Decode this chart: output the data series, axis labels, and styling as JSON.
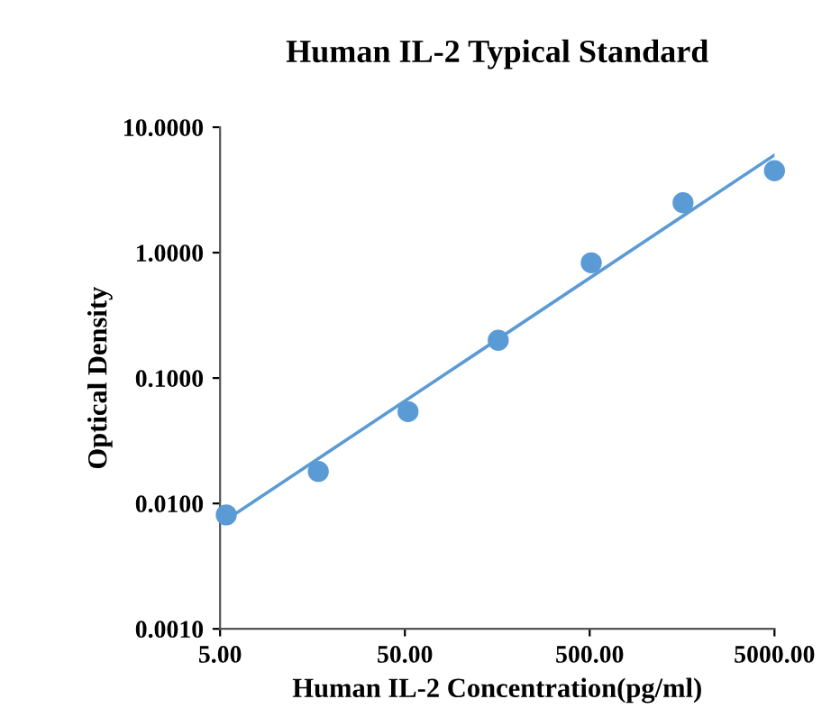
{
  "chart_data": {
    "type": "scatter",
    "title": "Human IL-2 Typical Standard",
    "xlabel": "Human IL-2 Concentration(pg/ml)",
    "ylabel": "Optical Density",
    "log": "xy",
    "grid": false,
    "xlim": [
      5,
      5000
    ],
    "xticks": [
      {
        "value": 5,
        "label": "5.00"
      },
      {
        "value": 50,
        "label": "50.00"
      },
      {
        "value": 500,
        "label": "500.00"
      },
      {
        "value": 5000,
        "label": "5000.00"
      }
    ],
    "ylim": [
      0.001,
      10
    ],
    "yticks": [
      {
        "value": 0.001,
        "label": "0.0010"
      },
      {
        "value": 0.01,
        "label": "0.0100"
      },
      {
        "value": 0.1,
        "label": "0.1000"
      },
      {
        "value": 1,
        "label": "1.0000"
      },
      {
        "value": 10,
        "label": "10.0000"
      }
    ],
    "series": [
      {
        "color": "#5b9bd5",
        "marker": "circle",
        "x": [
          5.4,
          17,
          52,
          160,
          510,
          1600,
          5000
        ],
        "values": [
          0.0081,
          0.018,
          0.054,
          0.2,
          0.83,
          2.5,
          4.5
        ]
      },
      {
        "type": "line",
        "color": "#5b9bd5",
        "marker": "none",
        "line_style": "solid",
        "x": [
          5.4,
          5000
        ],
        "values": [
          0.0074,
          6.0
        ]
      }
    ]
  }
}
